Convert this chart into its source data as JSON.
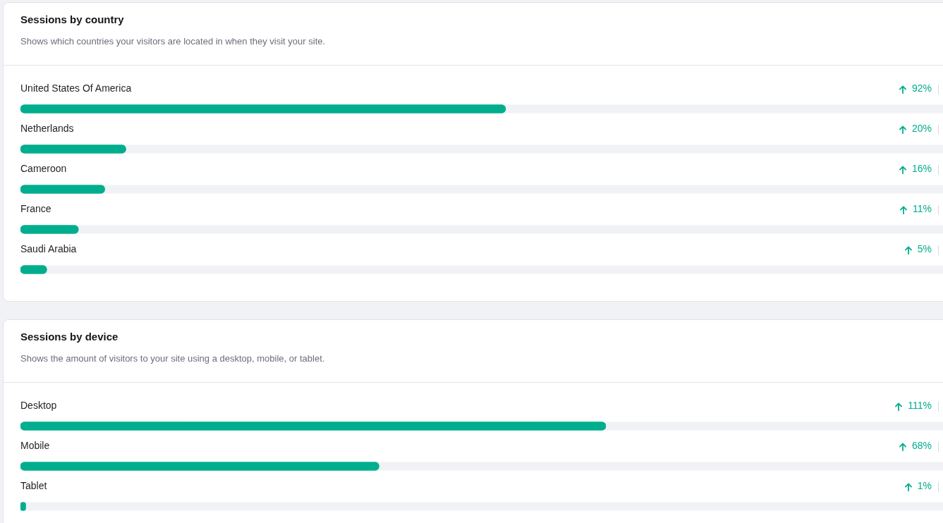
{
  "chart_data": [
    {
      "type": "bar",
      "orientation": "horizontal",
      "title": "Sessions by country",
      "subtitle": "Shows which countries your visitors are located in when they visit your site.",
      "categories": [
        "United States Of America",
        "Netherlands",
        "Cameroon",
        "France",
        "Saudi Arabia"
      ],
      "values": [
        92,
        20,
        16,
        11,
        5
      ],
      "value_labels": [
        "92%",
        "20%",
        "16%",
        "11%",
        "5%"
      ],
      "color": "#00ae8e",
      "tick_labels": "y"
    },
    {
      "type": "bar",
      "orientation": "horizontal",
      "title": "Sessions by device",
      "subtitle": "Shows the amount of visitors to your site using a desktop, mobile, or tablet.",
      "categories": [
        "Desktop",
        "Mobile",
        "Tablet"
      ],
      "values": [
        111,
        68,
        1
      ],
      "value_labels": [
        "111%",
        "68%",
        "1%"
      ],
      "color": "#00ae8e",
      "tick_labels": "y"
    }
  ]
}
